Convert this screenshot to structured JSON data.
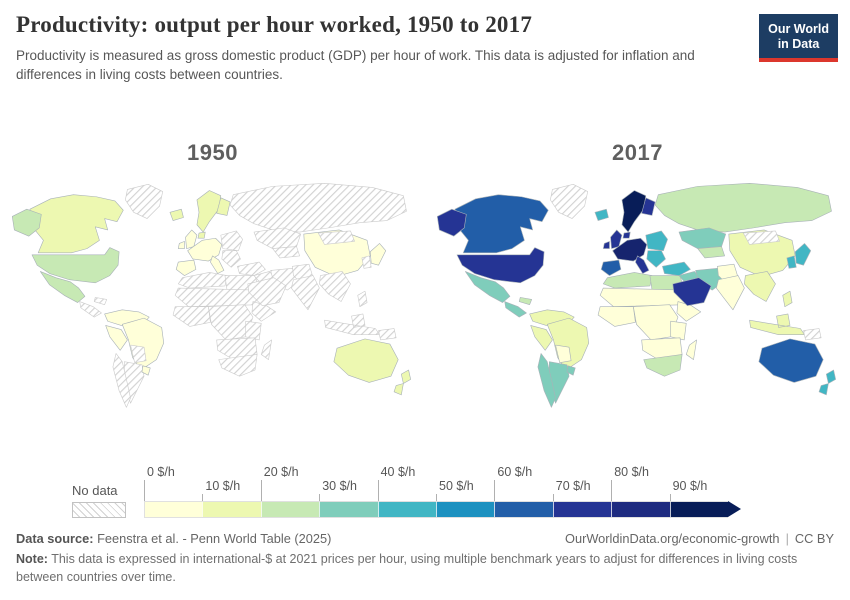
{
  "header": {
    "title": "Productivity: output per hour worked, 1950 to 2017",
    "subtitle": "Productivity is measured as gross domestic product (GDP) per hour of work. This data is adjusted for inflation and differences in living costs between countries.",
    "logo": {
      "line1": "Our World",
      "line2": "in Data",
      "bg_color": "#1d3d63",
      "accent_color": "#dc372d"
    }
  },
  "chart_data": {
    "type": "heatmap",
    "subtype": "choropleth world map pair",
    "title": "Productivity: output per hour worked, 1950 to 2017",
    "legend": {
      "no_data_label": "No data",
      "tick_labels": [
        "0 $/h",
        "10 $/h",
        "20 $/h",
        "30 $/h",
        "40 $/h",
        "50 $/h",
        "60 $/h",
        "70 $/h",
        "80 $/h",
        "90 $/h"
      ],
      "bin_colors": [
        "#ffffd9",
        "#edf8b1",
        "#c7e9b4",
        "#7fcdbb",
        "#41b6c4",
        "#1d91c0",
        "#225ea8",
        "#253494",
        "#1e2b80",
        "#081d58"
      ],
      "no_data_pattern": "diagonal-hatch",
      "open_ended_max": true
    },
    "maps": [
      {
        "year": "1950",
        "regions": {
          "russia": "nodata",
          "canada": "#edf8b1",
          "greenland": "nodata",
          "usa": "#c7e9b4",
          "alaska": "#c7e9b4",
          "china": "#ffffd9",
          "mongolia": "nodata",
          "north-africa": "nodata",
          "libya-egypt": "nodata",
          "sahara": "nodata",
          "west-africa": "nodata",
          "central-africa": "nodata",
          "horn": "nodata",
          "east-africa": "nodata",
          "southern-africa": "nodata",
          "south-africa": "nodata",
          "madagascar": "nodata",
          "mexico": "#c7e9b4",
          "central-america": "nodata",
          "caribbean": "nodata",
          "colombia-venezuela": "#ffffd9",
          "peru": "#ffffd9",
          "brazil": "#ffffd9",
          "bolivia-paraguay": "nodata",
          "argentina": "nodata",
          "chile": "nodata",
          "uruguay": "#ffffd9",
          "scandinavia": "#edf8b1",
          "finland": "#edf8b1",
          "iceland": "#edf8b1",
          "uk": "#ffffd9",
          "denmark": "#edf8b1",
          "eastern-europe": "nodata",
          "western-europe": "#ffffd9",
          "iberia": "#ffffd9",
          "italy": "#ffffd9",
          "balkans": "nodata",
          "kazakhstan": "nodata",
          "central-asia": "nodata",
          "turkey": "nodata",
          "iraq-syria": "nodata",
          "iran": "nodata",
          "saudi": "nodata",
          "pakistan-afghanistan": "nodata",
          "india": "nodata",
          "se-asia": "nodata",
          "indonesia": "nodata",
          "philippines": "nodata",
          "japan": "#ffffd9",
          "korea": "nodata",
          "png": "nodata",
          "australia": "#edf8b1",
          "new-zealand": "#edf8b1"
        }
      },
      {
        "year": "2017",
        "regions": {
          "russia": "#c7e9b4",
          "canada": "#225ea8",
          "greenland": "nodata",
          "usa": "#253494",
          "alaska": "#253494",
          "china": "#edf8b1",
          "mongolia": "nodata",
          "north-africa": "#c7e9b4",
          "libya-egypt": "#c7e9b4",
          "sahara": "#ffffd9",
          "west-africa": "#ffffd9",
          "central-africa": "#ffffd9",
          "horn": "#ffffd9",
          "east-africa": "#ffffd9",
          "southern-africa": "#ffffd9",
          "south-africa": "#c7e9b4",
          "madagascar": "#ffffd9",
          "mexico": "#7fcdbb",
          "central-america": "#7fcdbb",
          "caribbean": "#c7e9b4",
          "colombia-venezuela": "#edf8b1",
          "peru": "#edf8b1",
          "brazil": "#edf8b1",
          "bolivia-paraguay": "#ffffd9",
          "argentina": "#7fcdbb",
          "chile": "#7fcdbb",
          "uruguay": "#7fcdbb",
          "scandinavia": "#081d58",
          "finland": "#253494",
          "iceland": "#41b6c4",
          "uk": "#253494",
          "denmark": "#253494",
          "eastern-europe": "#41b6c4",
          "western-europe": "#16246e",
          "iberia": "#225ea8",
          "italy": "#253494",
          "balkans": "#41b6c4",
          "kazakhstan": "#7fcdbb",
          "central-asia": "#c7e9b4",
          "turkey": "#41b6c4",
          "iraq-syria": "#7fcdbb",
          "iran": "#7fcdbb",
          "saudi": "#253494",
          "pakistan-afghanistan": "#ffffd9",
          "india": "#ffffd9",
          "se-asia": "#edf8b1",
          "indonesia": "#edf8b1",
          "philippines": "#edf8b1",
          "japan": "#41b6c4",
          "korea": "#41b6c4",
          "png": "nodata",
          "australia": "#225ea8",
          "new-zealand": "#41b6c4"
        }
      }
    ]
  },
  "footer": {
    "data_source_label": "Data source:",
    "data_source": "Feenstra et al. - Penn World Table (2025)",
    "url": "OurWorldinData.org/economic-growth",
    "separator": "|",
    "license": "CC BY",
    "note_label": "Note:",
    "note": "This data is expressed in international-$ at 2021 prices per hour, using multiple benchmark years to adjust for differences in living costs between countries over time."
  }
}
